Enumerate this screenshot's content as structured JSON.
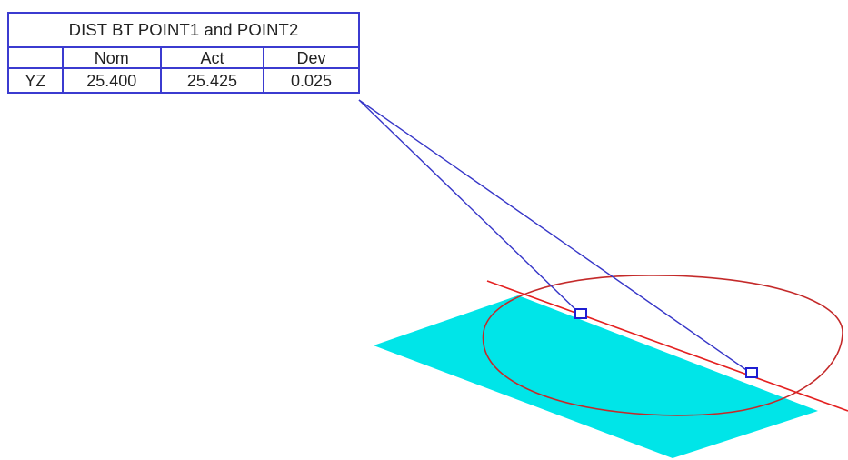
{
  "dimension_label": {
    "title": "DIST BT POINT1 and POINT2",
    "headers": [
      "",
      "Nom",
      "Act",
      "Dev"
    ],
    "row": {
      "axis": "YZ",
      "nom": "25.400",
      "act": "25.425",
      "dev": "0.025"
    }
  },
  "colors": {
    "plane": "#00e5e8",
    "circle": "#d92a2a",
    "line": "#e42020",
    "leader": "#3636c8",
    "table_border": "#3b3bd0",
    "point_marker": "#1e1ed2"
  }
}
